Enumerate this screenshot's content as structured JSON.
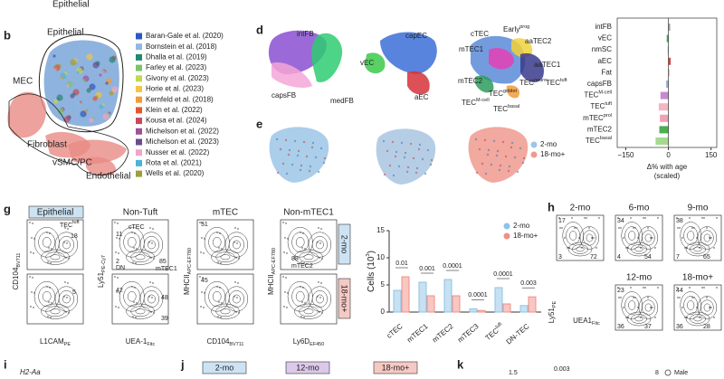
{
  "top": {
    "cut_label": "Epithelial"
  },
  "panel_b": {
    "label": "b",
    "clusters": [
      "Epithelial",
      "MEC",
      "Fibroblast",
      "vSMC/PC",
      "Endothelial"
    ],
    "legend": [
      {
        "name": "Baran-Gale et al. (2020)",
        "color": "#2b59c3"
      },
      {
        "name": "Bornstein et al. (2018)",
        "color": "#8fb8e8"
      },
      {
        "name": "Dhalla et al. (2019)",
        "color": "#1f8a70"
      },
      {
        "name": "Farley et al. (2023)",
        "color": "#7cc36a"
      },
      {
        "name": "Givony et al. (2023)",
        "color": "#c2d94c"
      },
      {
        "name": "Horie et al. (2023)",
        "color": "#f4c542"
      },
      {
        "name": "Kernfeld et al. (2018)",
        "color": "#f29a38"
      },
      {
        "name": "Klein et al. (2022)",
        "color": "#e4572e"
      },
      {
        "name": "Kousa et al. (2024)",
        "color": "#c9485b"
      },
      {
        "name": "Michelson et al. (2022)",
        "color": "#a05195"
      },
      {
        "name": "Michelson et al. (2023)",
        "color": "#6a4c93"
      },
      {
        "name": "Nusser et al. (2022)",
        "color": "#f5a3c7"
      },
      {
        "name": "Rota et al. (2021)",
        "color": "#4bb3d6"
      },
      {
        "name": "Wells et al. (2020)",
        "color": "#9e9e3a"
      }
    ]
  },
  "panel_d": {
    "label": "d",
    "clusters": [
      {
        "text": "intFB"
      },
      {
        "text": "capsFB"
      },
      {
        "text": "medFB"
      },
      {
        "text": "vEC"
      },
      {
        "text": "capEC"
      },
      {
        "text": "aEC"
      },
      {
        "text": "cTEC"
      },
      {
        "text": "Early",
        "sup": "prog"
      },
      {
        "text": "aaTEC2"
      },
      {
        "text": "mTEC1"
      },
      {
        "text": "aaTEC1"
      },
      {
        "text": "mTEC2"
      },
      {
        "text": "TEC",
        "sup": "neuro"
      },
      {
        "text": "TEC",
        "sup": "tuft"
      },
      {
        "text": "TEC",
        "sup": "goblet"
      },
      {
        "text": "TEC",
        "sup": "M-cell"
      },
      {
        "text": "TEC",
        "sup": "basal"
      }
    ]
  },
  "panel_e": {
    "label": "e",
    "legend": [
      {
        "name": "2-mo",
        "color": "#9cc6e6"
      },
      {
        "name": "18-mo+",
        "color": "#ef9a8f"
      }
    ]
  },
  "panel_c_bars": {
    "categories": [
      {
        "text": "intFB"
      },
      {
        "text": "vEC"
      },
      {
        "text": "nmSC"
      },
      {
        "text": "aEC"
      },
      {
        "text": "Fat"
      },
      {
        "text": "capsFB"
      },
      {
        "text": "TEC",
        "sup": "M-cell"
      },
      {
        "text": "TEC",
        "sup": "tuft"
      },
      {
        "text": "mTEC",
        "sup": "prol"
      },
      {
        "text": "mTEC2"
      },
      {
        "text": "TEC",
        "sup": "basal"
      }
    ],
    "values": [
      6,
      -6,
      -3,
      8,
      4,
      -8,
      -28,
      -34,
      -30,
      -32,
      -45
    ],
    "colors": [
      "#999999",
      "#3cae5a",
      "#a8d8c8",
      "#e03c3c",
      "#d9b3a0",
      "#9bb3d9",
      "#c58bd0",
      "#f4b6c2",
      "#f2a0b4",
      "#4caf50",
      "#a5d98f"
    ],
    "xlim": [
      -180,
      170
    ],
    "xticks": [
      {
        "value": -150,
        "label": "−150"
      },
      0,
      150
    ],
    "xlabel": [
      "Δ% with age",
      "(scaled)"
    ]
  },
  "panel_g": {
    "label": "g",
    "headers": [
      "Epithelial",
      "Non-Tuft",
      "mTEC",
      "Non-mTEC1"
    ],
    "row_tags": [
      "2-mo",
      "18-mo+"
    ],
    "axis_labels": [
      {
        "text": "CD104",
        "sub": "BV711"
      },
      {
        "text": "L1CAM",
        "sub": "PE"
      },
      {
        "text": "Ly51",
        "sub": "PE-Cy7"
      },
      {
        "text": "UEA-1",
        "sub": "Fitc"
      },
      {
        "text": "MHCII",
        "sub": "APC-EF780"
      },
      {
        "text": "CD104",
        "sub": "BV711"
      },
      {
        "text": "MHCII",
        "sub": "APC-EF780"
      },
      {
        "text": "Ly6D",
        "sub": "EF450"
      }
    ],
    "gates": [
      {
        "text": "TEC",
        "sup": "tuft"
      },
      {
        "text": "18"
      },
      {
        "text": "5"
      },
      {
        "text": "cTEC"
      },
      {
        "text": "11"
      },
      {
        "text": "2"
      },
      {
        "text": "DN"
      },
      {
        "text": "85"
      },
      {
        "text": "mTEC1"
      },
      {
        "text": "42"
      },
      {
        "text": "48"
      },
      {
        "text": "39"
      },
      {
        "text": "51"
      },
      {
        "text": "45"
      },
      {
        "text": "88"
      },
      {
        "text": "mTEC2"
      }
    ]
  },
  "panel_g_plot": {
    "ylabel": {
      "text": "Cells (10",
      "sup": "3",
      "tail": ")"
    },
    "categories": [
      {
        "text": "cTEC"
      },
      {
        "text": "mTEC1"
      },
      {
        "text": "mTEC2"
      },
      {
        "text": "mTEC3"
      },
      {
        "text": "TEC",
        "sup": "tuft"
      },
      {
        "text": "DN-TEC"
      }
    ],
    "series": [
      {
        "name": "2-mo",
        "color": "#8ec3e6",
        "values": [
          4,
          5.5,
          6,
          0.6,
          4.5,
          1.2
        ]
      },
      {
        "name": "18-mo+",
        "color": "#f08f85",
        "values": [
          6.5,
          3,
          3,
          0.3,
          1.5,
          2.8
        ]
      }
    ],
    "pvalues": [
      "0.01",
      "0.001",
      "0.0001",
      "0.0001",
      "0.0001",
      "0.003"
    ],
    "ylim": [
      0,
      15
    ],
    "yticks": [
      0,
      5,
      10,
      15
    ]
  },
  "panel_h": {
    "label": "h",
    "headers": [
      "2-mo",
      "6-mo",
      "9-mo",
      "12-mo",
      "18-mo+"
    ],
    "axis_labels": [
      {
        "text": "Ly51",
        "sub": "PE"
      },
      {
        "text": "UEA1",
        "sub": "Fitc"
      }
    ],
    "gates": [
      "17",
      "3",
      "72",
      "34",
      "4",
      "54",
      "38",
      "7",
      "65",
      "23",
      "36",
      "37",
      "44",
      "36",
      "28"
    ]
  },
  "bottom": {
    "i_label": "i",
    "gene": "H2-Aa",
    "j_label": "j",
    "j_tags": [
      "2-mo",
      "12-mo",
      "18-mo+"
    ],
    "k_label": "k",
    "k_tick": "1.5",
    "k_p": "0.003",
    "k_tick2": "8",
    "k_legend": "Male"
  }
}
